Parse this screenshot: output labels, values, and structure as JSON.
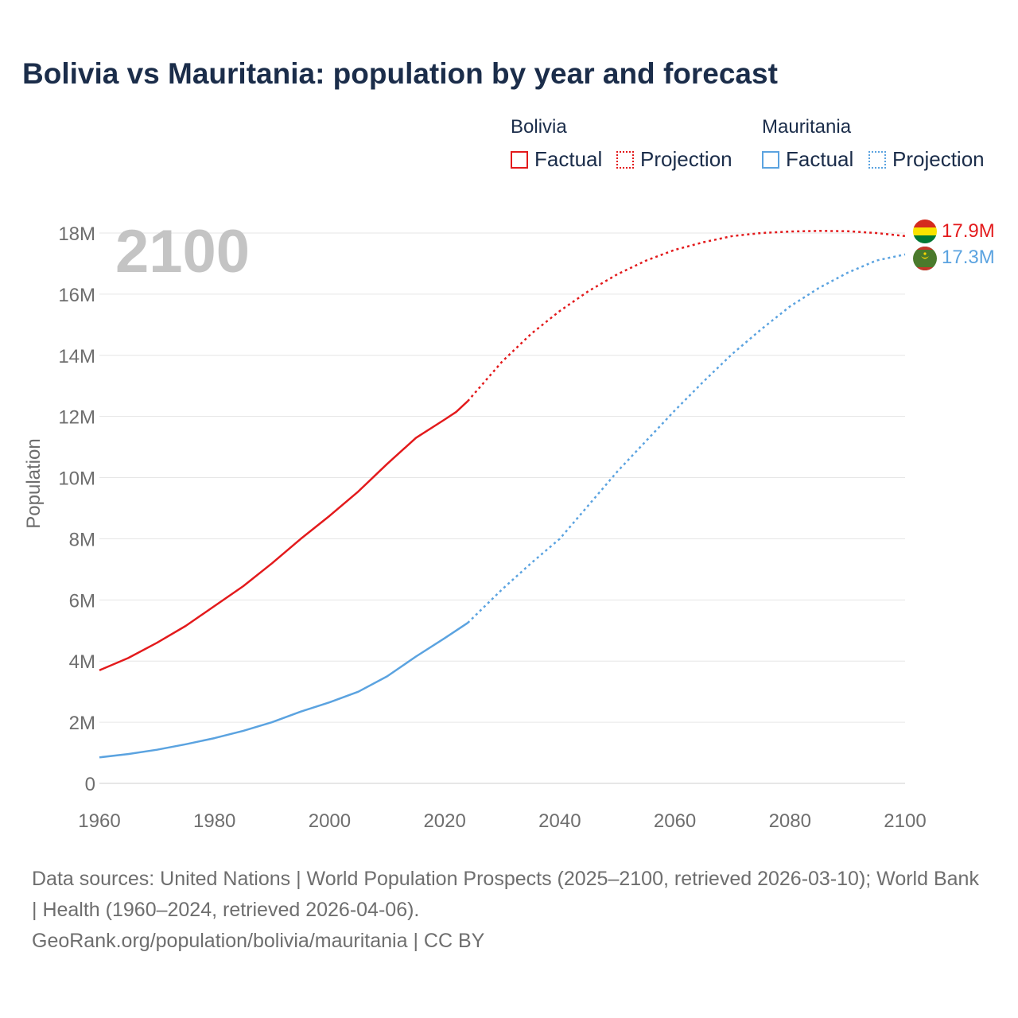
{
  "title": "Bolivia vs Mauritania: population by year and forecast",
  "legend": {
    "groups": [
      {
        "name": "Bolivia",
        "color": "#e31a1c",
        "factual_label": "Factual",
        "projection_label": "Projection"
      },
      {
        "name": "Mauritania",
        "color": "#5ba3e0",
        "factual_label": "Factual",
        "projection_label": "Projection"
      }
    ]
  },
  "year_overlay": "2100",
  "source": {
    "line1": "Data sources: United Nations | World Population Prospects (2025–2100, retrieved 2026-03-10); World Bank | Health (1960–2024, retrieved 2026-04-06).",
    "line2": "GeoRank.org/population/bolivia/mauritania | CC BY"
  },
  "chart_data": {
    "type": "line",
    "title": "Bolivia vs Mauritania: population by year and forecast",
    "xlabel": "",
    "ylabel": "Population",
    "xlim": [
      1960,
      2100
    ],
    "ylim": [
      0,
      18000000
    ],
    "x_ticks": [
      1960,
      1980,
      2000,
      2020,
      2040,
      2060,
      2080,
      2100
    ],
    "x_tick_labels": [
      "1960",
      "1980",
      "2000",
      "2020",
      "2040",
      "2060",
      "2080",
      "2100"
    ],
    "y_ticks": [
      0,
      2000000,
      4000000,
      6000000,
      8000000,
      10000000,
      12000000,
      14000000,
      16000000,
      18000000
    ],
    "y_tick_labels": [
      "0",
      "2M",
      "4M",
      "6M",
      "8M",
      "10M",
      "12M",
      "14M",
      "16M",
      "18M"
    ],
    "grid": true,
    "projection_start_year": 2024,
    "series": [
      {
        "name": "Bolivia",
        "color": "#e31a1c",
        "end_label": "17.9M",
        "x": [
          1960,
          1965,
          1970,
          1975,
          1980,
          1985,
          1990,
          1995,
          2000,
          2005,
          2010,
          2015,
          2020,
          2022,
          2024,
          2030,
          2035,
          2040,
          2045,
          2050,
          2055,
          2060,
          2065,
          2070,
          2075,
          2080,
          2085,
          2090,
          2095,
          2100
        ],
        "values": [
          3700000,
          4100000,
          4600000,
          5150000,
          5800000,
          6450000,
          7200000,
          8000000,
          8750000,
          9550000,
          10450000,
          11300000,
          11900000,
          12150000,
          12500000,
          13800000,
          14700000,
          15450000,
          16100000,
          16650000,
          17100000,
          17450000,
          17700000,
          17900000,
          18000000,
          18050000,
          18070000,
          18060000,
          18000000,
          17900000
        ]
      },
      {
        "name": "Mauritania",
        "color": "#5ba3e0",
        "end_label": "17.3M",
        "x": [
          1960,
          1965,
          1970,
          1975,
          1980,
          1985,
          1990,
          1995,
          2000,
          2005,
          2010,
          2015,
          2020,
          2024,
          2030,
          2035,
          2040,
          2045,
          2050,
          2055,
          2060,
          2065,
          2070,
          2075,
          2080,
          2085,
          2090,
          2095,
          2100
        ],
        "values": [
          850000,
          960000,
          1100000,
          1280000,
          1480000,
          1720000,
          2000000,
          2350000,
          2650000,
          3000000,
          3500000,
          4150000,
          4750000,
          5250000,
          6350000,
          7200000,
          8000000,
          9100000,
          10200000,
          11200000,
          12200000,
          13150000,
          14050000,
          14850000,
          15600000,
          16200000,
          16700000,
          17100000,
          17300000
        ]
      }
    ]
  }
}
